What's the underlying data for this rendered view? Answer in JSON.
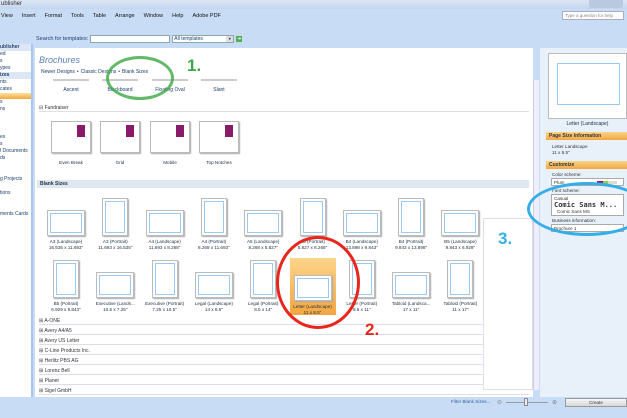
{
  "window": {
    "title": "ublisher"
  },
  "menu": [
    "View",
    "Insert",
    "Format",
    "Tools",
    "Table",
    "Arrange",
    "Window",
    "Help",
    "Adobe PDF"
  ],
  "help_placeholder": "Type a question for help",
  "search": {
    "label": "Search for templates:",
    "value": "",
    "scope": "All templates"
  },
  "sidebar": [
    "ublisher",
    "ed",
    "s",
    "ypes",
    "izes",
    "nts",
    "cates",
    "",
    "s",
    "ns",
    "",
    "",
    "",
    "es",
    "s",
    "l Documents",
    "ds",
    "",
    "",
    "g Projects",
    "",
    "tions",
    "",
    "",
    "ments Cards"
  ],
  "main": {
    "title": "Brochures",
    "crumbs": [
      "Newer Designs",
      "Classic Designs",
      "Blank Sizes"
    ],
    "designs": [
      "Ascent",
      "Blackboard",
      "Floating Oval",
      "Slant"
    ],
    "fundraiser": {
      "label": "Fundraiser",
      "items": [
        "Even Break",
        "Grid",
        "Mobile",
        "Top Notches"
      ]
    },
    "blank_sizes": {
      "label": "Blank Sizes",
      "items": [
        {
          "name": "A3 (Landscape)",
          "size": "16.535 x 11.693\""
        },
        {
          "name": "A3 (Portrait)",
          "size": "11.693 x 16.535\""
        },
        {
          "name": "A4 (Landscape)",
          "size": "11.693 x 8.268\""
        },
        {
          "name": "A4 (Portrait)",
          "size": "8.268 x 11.693\""
        },
        {
          "name": "A5 (Landscape)",
          "size": "8.268 x 5.827\""
        },
        {
          "name": "A5 (Portrait)",
          "size": "5.827 x 8.268\""
        },
        {
          "name": "B4 (Landscape)",
          "size": "13.898 x 9.843\""
        },
        {
          "name": "B4 (Portrait)",
          "size": "9.843 x 13.898\""
        },
        {
          "name": "B5 (Landscape)",
          "size": "9.843 x 6.929\""
        },
        {
          "name": "B5 (Portrait)",
          "size": "6.929 x 9.843\""
        },
        {
          "name": "Executive (Lands...",
          "size": "10.5 x 7.25\""
        },
        {
          "name": "Executive (Portrait)",
          "size": "7.25 x 10.5\""
        },
        {
          "name": "Legal (Landscape)",
          "size": "14 x 8.5\""
        },
        {
          "name": "Legal (Portrait)",
          "size": "8.5 x 14\""
        },
        {
          "name": "Letter (Landscape)",
          "size": "11 x 8.5\"",
          "selected": true
        },
        {
          "name": "Letter (Portrait)",
          "size": "8.5 x 11\""
        },
        {
          "name": "Tabloid (Landsca...",
          "size": "17 x 11\""
        },
        {
          "name": "Tabloid (Portrait)",
          "size": "11 x 17\""
        }
      ]
    },
    "vendors": [
      "A-ONE",
      "Avery A4/A5",
      "Avery US Letter",
      "C-Line Products Inc.",
      "Herlitz PBS AG",
      "Lorenz Bell",
      "Planet",
      "Sigel GmbH"
    ]
  },
  "right": {
    "preview_label": "Letter (Landscape)",
    "page_size_header": "Page Size Information",
    "page_size": "Letter Landscape",
    "page_dims": "11 x 8.5\"",
    "customize_header": "Customize",
    "color_label": "Color scheme:",
    "color_value": "Plum",
    "font_label": "Font scheme:",
    "font_name": "Casual",
    "font_major": "Comic Sans M...",
    "font_minor": "Comic Sans MS",
    "biz_label": "Business information:",
    "biz_value": "Brochure 1"
  },
  "bottom": {
    "filter": "Filter Blank Sizes...",
    "create": "Create"
  },
  "annotations": [
    "1.",
    "2.",
    "3."
  ],
  "colors": {
    "selection": "#f3a641",
    "ann1": "#3aa844",
    "ann2": "#e8261c",
    "ann3": "#35aee8"
  }
}
